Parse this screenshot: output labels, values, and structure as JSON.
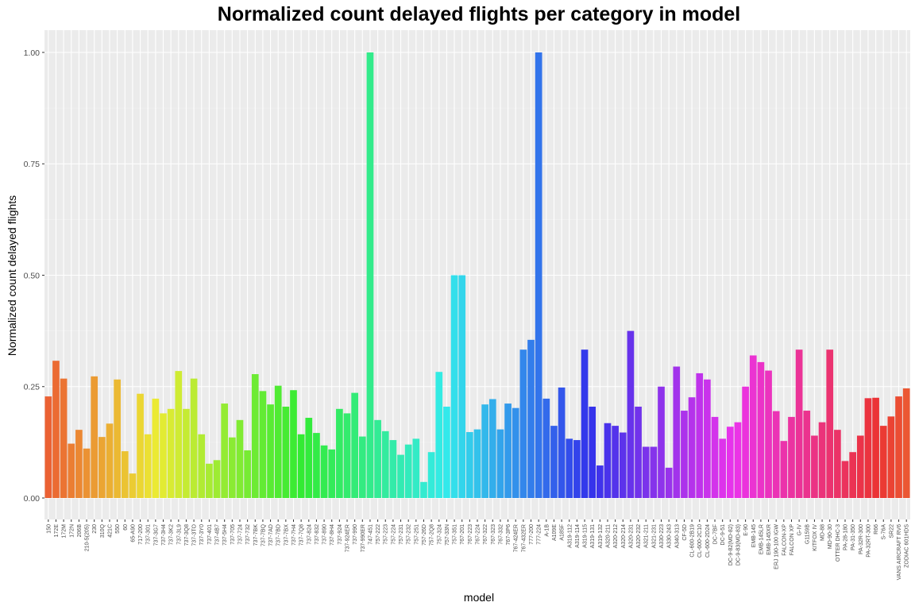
{
  "chart_data": {
    "type": "bar",
    "title": "Normalized count delayed flights per category in model",
    "xlabel": "model",
    "ylabel": "Normalized count delayed flights",
    "ylim": [
      0,
      1.05
    ],
    "yticks": [
      0.0,
      0.25,
      0.5,
      0.75,
      1.0
    ],
    "ytick_labels": [
      "0.00",
      "0.25",
      "0.50",
      "0.75",
      "1.00"
    ],
    "grid": true,
    "legend": "none",
    "background": "#ebebeb",
    "categories": [
      "150",
      "172E",
      "172M",
      "172N",
      "206B",
      "210-5(205)",
      "230",
      "310Q",
      "421C",
      "550",
      "60",
      "65-A90",
      "717-200",
      "737-301",
      "737-3G7",
      "737-3H4",
      "737-3K2",
      "737-3L9",
      "737-3Q8",
      "737-3TO",
      "737-3Y0",
      "737-401",
      "737-4B7",
      "737-5H4",
      "737-705",
      "737-724",
      "737-732",
      "737-7BK",
      "737-7BQ",
      "737-7AD",
      "737-7BD",
      "737-7BX",
      "737-7H4",
      "737-7Q8",
      "737-824",
      "737-832",
      "737-890",
      "737-8H4",
      "737-924",
      "737-924ER",
      "737-990",
      "737-990ER",
      "747-451",
      "757-222",
      "757-223",
      "757-224",
      "757-231",
      "757-232",
      "757-251",
      "757-26D",
      "757-2Q8",
      "757-324",
      "757-33N",
      "757-351",
      "767-201",
      "767-223",
      "767-224",
      "767-322",
      "767-323",
      "767-332",
      "767-3P6",
      "767-424ER",
      "767-432ER",
      "777-200",
      "777-224",
      "A-1B",
      "A109E",
      "A185F",
      "A319-112",
      "A319-114",
      "A319-115",
      "A319-131",
      "A319-132",
      "A320-211",
      "A320-212",
      "A320-214",
      "A320-231",
      "A320-232",
      "A321-211",
      "A321-231",
      "A330-223",
      "A330-243",
      "A340-313",
      "CF-5D",
      "CL-600-2B19",
      "CL-600-2C10",
      "CL-600-2D24",
      "DC-7BF",
      "DC-9-51",
      "DC-9-82(MD-82)",
      "DC-9-83(MD-83)",
      "E-90",
      "EMB-145",
      "EMB-145LR",
      "EMB-145XR",
      "ERJ 190-100 IGW",
      "FALCON-XP",
      "FALCON XP",
      "G-IV",
      "G1159B",
      "KITFOX IV",
      "MD-88",
      "MD-90-30",
      "OTTER DHC-3",
      "PA-28-180",
      "PA-31-350",
      "PA-32R-300",
      "PA-32RT-300",
      "R66",
      "S-76A",
      "SR22",
      "VANS AIRCRAFT RV6",
      "ZODIAC 601HDS"
    ],
    "values": [
      0.228,
      0.308,
      0.268,
      0.122,
      0.153,
      0.111,
      0.273,
      0.137,
      0.167,
      0.266,
      0.105,
      0.055,
      0.234,
      0.143,
      0.223,
      0.19,
      0.2,
      0.285,
      0.2,
      0.268,
      0.143,
      0.077,
      0.085,
      0.212,
      0.136,
      0.175,
      0.107,
      0.278,
      0.24,
      0.21,
      0.252,
      0.205,
      0.242,
      0.143,
      0.18,
      0.146,
      0.118,
      0.109,
      0.2,
      0.19,
      0.236,
      0.138,
      1.0,
      0.175,
      0.15,
      0.13,
      0.097,
      0.12,
      0.133,
      0.036,
      0.103,
      0.283,
      0.205,
      0.5,
      0.5,
      0.148,
      0.154,
      0.21,
      0.222,
      0.154,
      0.212,
      0.202,
      0.333,
      0.355,
      1.0,
      0.223,
      0.162,
      0.248,
      0.133,
      0.13,
      0.333,
      0.205,
      0.073,
      0.168,
      0.162,
      0.147,
      0.375,
      0.205,
      0.115,
      0.115,
      0.25,
      0.068,
      0.295,
      0.196,
      0.226,
      0.28,
      0.266,
      0.182,
      0.133,
      0.16,
      0.17,
      0.25,
      0.32,
      0.305,
      0.286,
      0.195,
      0.128,
      0.182,
      0.333,
      0.196,
      0.14,
      0.17,
      0.333,
      0.153,
      0.083,
      0.103,
      0.14,
      0.224,
      0.225,
      0.162,
      0.183,
      0.228,
      0.246
    ]
  }
}
